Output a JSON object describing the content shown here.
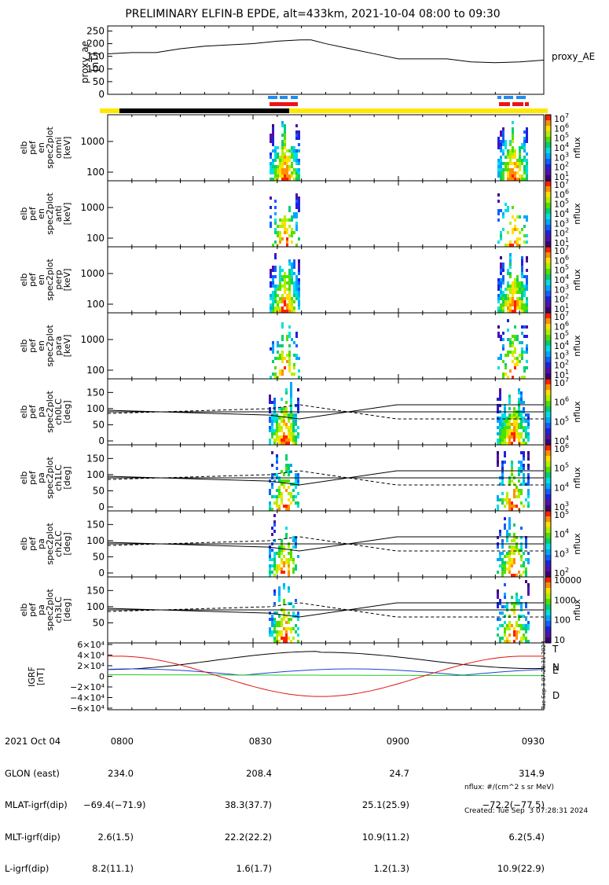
{
  "title": "PRELIMINARY ELFIN-B EPDE, alt=433km, 2021-10-04 08:00 to 09:30",
  "ae_panel": {
    "ylabel_lines": [
      "proxy_ae",
      "[nT]"
    ],
    "yticks": [
      0,
      50,
      100,
      150,
      200,
      250
    ],
    "legend": "proxy_AE"
  },
  "spec_panels": [
    {
      "ylabel_lines": [
        "elb",
        "pef",
        "en",
        "spec2plot",
        "omni",
        "[keV]"
      ],
      "yticks": [
        "100",
        "1000"
      ],
      "cbar_label": "nflux"
    },
    {
      "ylabel_lines": [
        "elb",
        "pef",
        "en",
        "spec2plot",
        "anti",
        "[keV]"
      ],
      "yticks": [
        "100",
        "1000"
      ],
      "cbar_label": "nflux"
    },
    {
      "ylabel_lines": [
        "elb",
        "pef",
        "en",
        "spec2plot",
        "perp",
        "[keV]"
      ],
      "yticks": [
        "100",
        "1000"
      ],
      "cbar_label": "nflux"
    },
    {
      "ylabel_lines": [
        "elb",
        "pef",
        "en",
        "spec2plot",
        "para",
        "[keV]"
      ],
      "yticks": [
        "100",
        "1000"
      ],
      "cbar_label": "nflux"
    }
  ],
  "pa_panels": [
    {
      "ylabel_lines": [
        "elb",
        "pef",
        "pa",
        "spec2plot",
        "ch0LC",
        "[deg]"
      ],
      "yticks": [
        "0",
        "50",
        "100",
        "150"
      ],
      "cbar_label": "nflux"
    },
    {
      "ylabel_lines": [
        "elb",
        "pef",
        "pa",
        "spec2plot",
        "ch1LC",
        "[deg]"
      ],
      "yticks": [
        "0",
        "50",
        "100",
        "150"
      ],
      "cbar_label": "nflux"
    },
    {
      "ylabel_lines": [
        "elb",
        "pef",
        "pa",
        "spec2plot",
        "ch2LC",
        "[deg]"
      ],
      "yticks": [
        "0",
        "50",
        "100",
        "150"
      ],
      "cbar_label": "nflux"
    },
    {
      "ylabel_lines": [
        "elb",
        "pef",
        "pa",
        "spec2plot",
        "ch3LC",
        "[deg]"
      ],
      "yticks": [
        "50",
        "100",
        "150"
      ],
      "cbar_label": "nflux"
    }
  ],
  "colorbar_ticks": [
    {
      "base": "10",
      "exps": [
        "1",
        "2",
        "3",
        "4",
        "5",
        "6",
        "7"
      ]
    },
    {
      "base": "10",
      "exps": [
        "1",
        "2",
        "3",
        "4",
        "5",
        "6",
        "7"
      ]
    },
    {
      "base": "10",
      "exps": [
        "1",
        "2",
        "3",
        "4",
        "5",
        "6",
        "7"
      ]
    },
    {
      "base": "10",
      "exps": [
        "1",
        "2",
        "3",
        "4",
        "5",
        "6",
        "7"
      ]
    },
    {
      "base": "10",
      "exps": [
        "4",
        "5",
        "6",
        "7"
      ]
    },
    {
      "base": "10",
      "exps": [
        "3",
        "4",
        "5",
        "6"
      ]
    },
    {
      "base": "10",
      "exps": [
        "2",
        "3",
        "4",
        "5"
      ]
    },
    {
      "plain": [
        "10",
        "100",
        "1000",
        "10000"
      ]
    }
  ],
  "field_panel": {
    "ylabel_lines": [
      "IGRF",
      "[nT]"
    ],
    "yticks": [
      "−6×10⁴",
      "−4×10⁴",
      "−2×10⁴",
      "0",
      "2×10⁴",
      "4×10⁴",
      "6×10⁴"
    ],
    "legend": [
      {
        "label": "T",
        "color": "#000000"
      },
      {
        "label": "N",
        "color": "#1f3fd8"
      },
      {
        "label": "E",
        "color": "#22cc22"
      },
      {
        "label": "D",
        "color": "#e01010"
      }
    ],
    "side_stamp": "Tue Sep 3 07:28:31 2024"
  },
  "colors": {
    "ae_line": "#000000",
    "state_bar": "#ffe800",
    "shadow_bar": "#000000",
    "science_blue": "#1e8cf0",
    "science_red": "#e8161a",
    "model_line": "#000000"
  },
  "info_table": {
    "labels": [
      "2021 Oct 04",
      "GLON (east)",
      "MLAT-igrf(dip)",
      "MLT-igrf(dip)",
      "L-igrf(dip)"
    ],
    "columns": [
      [
        "0800",
        "234.0",
        "−69.4(−71.9)",
        "2.6(1.5)",
        "8.2(11.1)"
      ],
      [
        "0830",
        "208.4",
        "38.3(37.7)",
        "22.2(22.2)",
        "1.6(1.7)"
      ],
      [
        "0900",
        "24.7",
        "25.1(25.9)",
        "10.9(11.2)",
        "1.2(1.3)"
      ],
      [
        "0930",
        "314.9",
        "−72.2(−77.5)",
        "6.2(5.4)",
        "10.9(22.9)"
      ]
    ]
  },
  "footer": {
    "units": "nflux: #/(cm^2 s sr MeV)",
    "created": "Created: Tue Sep  3 07:28:31 2024"
  },
  "chart_data": {
    "type": "line",
    "title": "PRELIMINARY ELFIN-B EPDE, alt=433km, 2021-10-04 08:00 to 09:30",
    "x_time_minutes": [
      0,
      5,
      10,
      15,
      20,
      25,
      30,
      35,
      40,
      42,
      45,
      50,
      55,
      60,
      65,
      70,
      75,
      80,
      85,
      90
    ],
    "xticks": [
      "0800",
      "0830",
      "0900",
      "0930"
    ],
    "series": [
      {
        "name": "proxy_AE",
        "values": [
          160,
          165,
          165,
          180,
          190,
          195,
          200,
          210,
          215,
          215,
          200,
          180,
          160,
          140,
          140,
          140,
          128,
          125,
          128,
          135
        ]
      }
    ],
    "ylim": [
      0,
      270
    ],
    "ylabel": "proxy_ae [nT]"
  }
}
